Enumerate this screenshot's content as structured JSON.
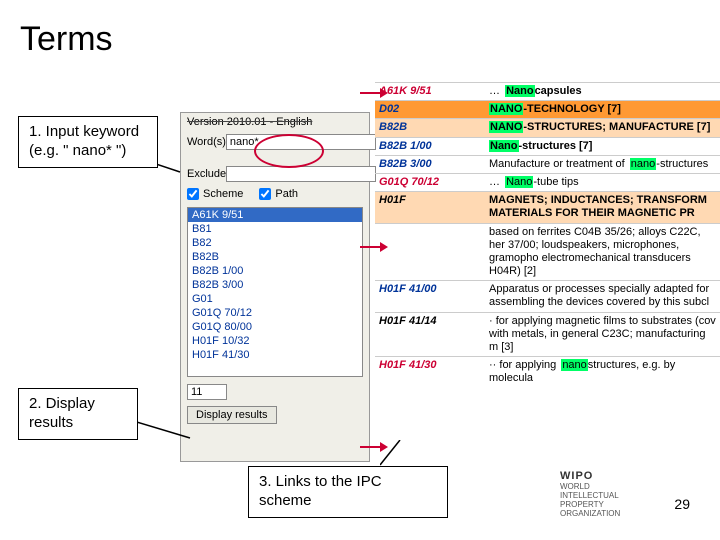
{
  "title": "Terms",
  "callouts": {
    "c1": "1. Input keyword (e.g. \" nano* \")",
    "c2": "2. Display results",
    "c3": "3. Links to the IPC scheme"
  },
  "panel": {
    "version": "Version 2010.01 - English",
    "word_label": "Word(s)",
    "word_value": "nano*",
    "exclude_label": "Exclude",
    "scheme_label": "Scheme",
    "path_label": "Path",
    "scheme_checked": true,
    "path_checked": true,
    "list": [
      "A61K 9/51",
      "B81",
      "B82",
      "B82B",
      "B82B 1/00",
      "B82B 3/00",
      "G01",
      "G01Q 70/12",
      "G01Q 80/00",
      "H01F 10/32",
      "H01F 41/30"
    ],
    "num_value": "11",
    "display_btn": "Display results"
  },
  "results": [
    {
      "code": "A61K 9/51",
      "codeStyle": "red",
      "band": "",
      "desc_pre": "… ",
      "desc_hl": "Nano",
      "desc_post": "capsules",
      "descClass": ""
    },
    {
      "code": "D02",
      "codeStyle": "",
      "band": "band-orange",
      "desc_hl": "NANO",
      "desc_post": "-TECHNOLOGY [7]",
      "descClass": ""
    },
    {
      "code": "B82B",
      "codeStyle": "",
      "band": "band-peach",
      "desc_hl": "NANO",
      "desc_post": "-STRUCTURES; MANUFACTURE [7]",
      "descClass": ""
    },
    {
      "code": "B82B 1/00",
      "codeStyle": "",
      "band": "",
      "desc_hl": "Nano",
      "desc_post": "-structures [7]",
      "descClass": ""
    },
    {
      "code": "B82B 3/00",
      "codeStyle": "",
      "band": "",
      "desc_pre": "Manufacture or treatment of ",
      "desc_hl": "nano",
      "desc_post": "-structures",
      "descClass": "normal"
    },
    {
      "code": "G01Q 70/12",
      "codeStyle": "red",
      "band": "",
      "desc_pre": "… ",
      "desc_hl": "Nano",
      "desc_post": "-tube tips",
      "descClass": "normal"
    },
    {
      "code": "H01F",
      "codeStyle": "black",
      "band": "band-peach",
      "desc_post": "MAGNETS; INDUCTANCES; TRANSFORM MATERIALS FOR THEIR MAGNETIC PR",
      "descClass": ""
    },
    {
      "code": "",
      "codeStyle": "",
      "band": "",
      "desc_post": "based on ferrites C04B 35/26; alloys C22C, her 37/00; loudspeakers, microphones, gramopho electromechanical transducers H04R) [2]",
      "descClass": "normal"
    },
    {
      "code": "H01F 41/00",
      "codeStyle": "",
      "band": "",
      "desc_post": "Apparatus or processes specially adapted for assembling the devices covered by this subcl",
      "descClass": "normal"
    },
    {
      "code": "H01F 41/14",
      "codeStyle": "black",
      "band": "",
      "desc_post": "· for applying magnetic films to substrates (cov with metals, in general C23C; manufacturing m  [3]",
      "descClass": "normal"
    },
    {
      "code": "H01F 41/30",
      "codeStyle": "red",
      "band": "",
      "desc_pre": "·· for applying ",
      "desc_hl": "nano",
      "desc_post": "structures, e.g. by molecula",
      "descClass": "normal"
    }
  ],
  "logo": {
    "name": "WIPO",
    "line1": "WORLD",
    "line2": "INTELLECTUAL PROPERTY",
    "line3": "ORGANIZATION"
  },
  "page": "29"
}
